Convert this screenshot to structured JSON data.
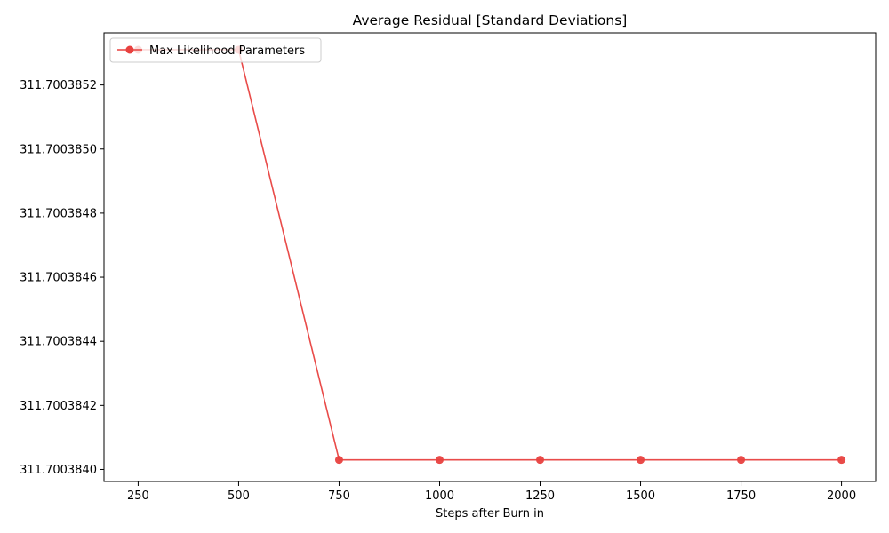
{
  "chart_data": {
    "type": "line",
    "title": "Average Residual [Standard Deviations]",
    "xlabel": "Steps after Burn in",
    "ylabel": "",
    "x": [
      250,
      500,
      750,
      1000,
      1250,
      1500,
      1750,
      2000
    ],
    "series": [
      {
        "name": "Max Likelihood Parameters",
        "color": "#e8413f",
        "values": [
          311.70038531,
          311.70038531,
          311.70038403,
          311.70038403,
          311.70038403,
          311.70038403,
          311.70038403,
          311.70038403
        ]
      }
    ],
    "xlim": [
      165,
      2085
    ],
    "ylim": [
      311.7003839625,
      311.7003853625
    ],
    "x_ticks": [
      250,
      500,
      750,
      1000,
      1250,
      1500,
      1750,
      2000
    ],
    "x_tick_labels": [
      "250",
      "500",
      "750",
      "1000",
      "1250",
      "1500",
      "1750",
      "2000"
    ],
    "y_ticks": [
      311.700384,
      311.7003842,
      311.7003844,
      311.7003846,
      311.7003848,
      311.700385,
      311.7003852
    ],
    "y_tick_labels": [
      "311.7003840",
      "311.7003842",
      "311.7003844",
      "311.7003846",
      "311.7003848",
      "311.7003850",
      "311.7003852"
    ],
    "grid": false,
    "legend_position": "top-left"
  }
}
